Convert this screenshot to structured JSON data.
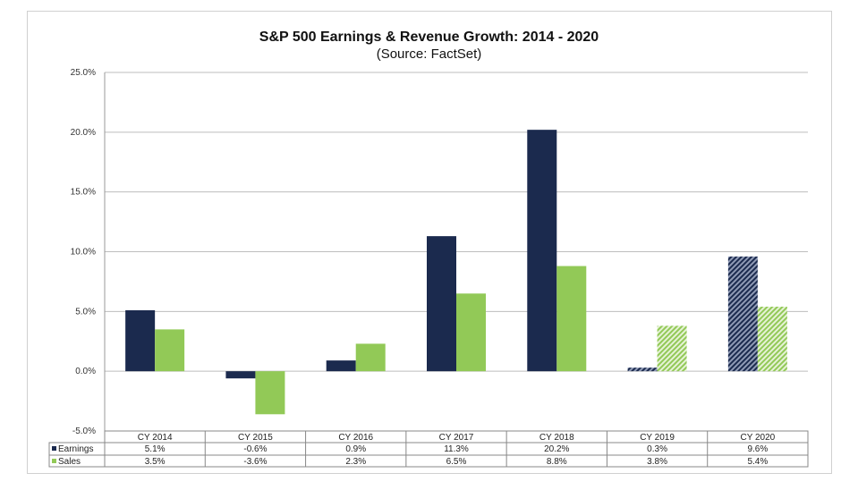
{
  "chart_data": {
    "type": "bar",
    "title": "S&P 500 Earnings & Revenue Growth: 2014 - 2020",
    "subtitle": "(Source: FactSet)",
    "categories": [
      "CY 2014",
      "CY 2015",
      "CY 2016",
      "CY 2017",
      "CY 2018",
      "CY 2019",
      "CY 2020"
    ],
    "series": [
      {
        "name": "Earnings",
        "values": [
          5.1,
          -0.6,
          0.9,
          11.3,
          20.2,
          0.3,
          9.6
        ],
        "labels": [
          "5.1%",
          "-0.6%",
          "0.9%",
          "11.3%",
          "20.2%",
          "0.3%",
          "9.6%"
        ],
        "color": "#1b2a4e"
      },
      {
        "name": "Sales",
        "values": [
          3.5,
          -3.6,
          2.3,
          6.5,
          8.8,
          3.8,
          5.4
        ],
        "labels": [
          "3.5%",
          "-3.6%",
          "2.3%",
          "6.5%",
          "8.8%",
          "3.8%",
          "5.4%"
        ],
        "color": "#92c957"
      }
    ],
    "hatched_categories": [
      "CY 2019",
      "CY 2020"
    ],
    "ylim": [
      -5,
      25
    ],
    "yticks": [
      "-5.0%",
      "0.0%",
      "5.0%",
      "10.0%",
      "15.0%",
      "20.0%",
      "25.0%"
    ],
    "grid": true,
    "legend": "data-table"
  }
}
